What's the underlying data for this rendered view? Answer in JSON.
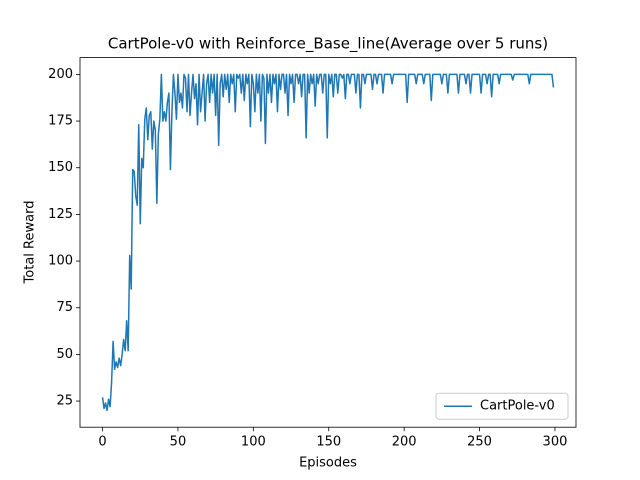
{
  "chart_data": {
    "type": "line",
    "title": "CartPole-v0 with Reinforce_Base_line(Average over 5 runs)",
    "x_label": "Episodes",
    "y_label": "Total Reward",
    "x": [
      0,
      1,
      2,
      3,
      4,
      5,
      6,
      7,
      8,
      9,
      10,
      11,
      12,
      13,
      14,
      15,
      16,
      17,
      18,
      19,
      20,
      21,
      22,
      23,
      24,
      25,
      26,
      27,
      28,
      29,
      30,
      31,
      32,
      33,
      34,
      35,
      36,
      37,
      38,
      39,
      40,
      41,
      42,
      43,
      44,
      45,
      46,
      47,
      48,
      49,
      50,
      51,
      52,
      53,
      54,
      55,
      56,
      57,
      58,
      59,
      60,
      61,
      62,
      63,
      64,
      65,
      66,
      67,
      68,
      69,
      70,
      71,
      72,
      73,
      74,
      75,
      76,
      77,
      78,
      79,
      80,
      81,
      82,
      83,
      84,
      85,
      86,
      87,
      88,
      89,
      90,
      91,
      92,
      93,
      94,
      95,
      96,
      97,
      98,
      99,
      100,
      101,
      102,
      103,
      104,
      105,
      106,
      107,
      108,
      109,
      110,
      111,
      112,
      113,
      114,
      115,
      116,
      117,
      118,
      119,
      120,
      121,
      122,
      123,
      124,
      125,
      126,
      127,
      128,
      129,
      130,
      131,
      132,
      133,
      134,
      135,
      136,
      137,
      138,
      139,
      140,
      141,
      142,
      143,
      144,
      145,
      146,
      147,
      148,
      149,
      150,
      151,
      152,
      153,
      154,
      155,
      156,
      157,
      158,
      159,
      160,
      161,
      162,
      163,
      164,
      165,
      166,
      167,
      168,
      169,
      170,
      171,
      172,
      173,
      174,
      175,
      176,
      177,
      178,
      179,
      180,
      181,
      182,
      183,
      184,
      185,
      186,
      187,
      188,
      189,
      190,
      191,
      192,
      193,
      194,
      195,
      196,
      197,
      198,
      199,
      200,
      201,
      202,
      203,
      204,
      205,
      206,
      207,
      208,
      209,
      210,
      211,
      212,
      213,
      214,
      215,
      216,
      217,
      218,
      219,
      220,
      221,
      222,
      223,
      224,
      225,
      226,
      227,
      228,
      229,
      230,
      231,
      232,
      233,
      234,
      235,
      236,
      237,
      238,
      239,
      240,
      241,
      242,
      243,
      244,
      245,
      246,
      247,
      248,
      249,
      250,
      251,
      252,
      253,
      254,
      255,
      256,
      257,
      258,
      259,
      260,
      261,
      262,
      263,
      264,
      265,
      266,
      267,
      268,
      269,
      270,
      271,
      272,
      273,
      274,
      275,
      276,
      277,
      278,
      279,
      280,
      281,
      282,
      283,
      284,
      285,
      286,
      287,
      288,
      289,
      290,
      291,
      292,
      293,
      294,
      295,
      296,
      297,
      298,
      299
    ],
    "series": [
      {
        "name": "CartPole-v0",
        "color": "#1f77b4",
        "values": [
          27,
          21,
          24,
          20,
          26,
          22,
          35,
          57,
          42,
          46,
          43,
          48,
          44,
          50,
          58,
          52,
          68,
          52,
          103,
          85,
          149,
          148,
          135,
          130,
          173,
          120,
          155,
          150,
          176,
          182,
          165,
          178,
          180,
          160,
          175,
          170,
          131,
          168,
          176,
          200,
          175,
          180,
          175,
          185,
          190,
          149,
          180,
          200,
          190,
          176,
          200,
          185,
          190,
          182,
          200,
          198,
          180,
          200,
          178,
          190,
          200,
          187,
          195,
          173,
          200,
          180,
          190,
          200,
          175,
          195,
          200,
          185,
          200,
          190,
          200,
          178,
          200,
          162,
          195,
          200,
          188,
          200,
          192,
          200,
          185,
          200,
          195,
          200,
          180,
          200,
          198,
          200,
          190,
          200,
          186,
          200,
          195,
          200,
          172,
          200,
          195,
          180,
          200,
          190,
          200,
          175,
          200,
          198,
          163,
          200,
          190,
          200,
          185,
          200,
          195,
          200,
          180,
          200,
          192,
          200,
          200,
          190,
          200,
          178,
          200,
          195,
          200,
          185,
          200,
          200,
          195,
          200,
          188,
          200,
          200,
          166,
          200,
          190,
          200,
          195,
          200,
          183,
          200,
          195,
          200,
          200,
          190,
          200,
          200,
          166,
          200,
          195,
          200,
          188,
          200,
          200,
          190,
          200,
          200,
          198,
          200,
          187,
          200,
          200,
          195,
          200,
          200,
          200,
          190,
          200,
          200,
          182,
          200,
          200,
          195,
          200,
          200,
          200,
          200,
          192,
          200,
          200,
          195,
          200,
          200,
          200,
          190,
          200,
          200,
          200,
          200,
          200,
          195,
          200,
          200,
          200,
          200,
          200,
          200,
          200,
          200,
          200,
          185,
          200,
          200,
          200,
          200,
          200,
          195,
          200,
          200,
          200,
          200,
          195,
          200,
          200,
          200,
          200,
          186,
          200,
          200,
          200,
          200,
          200,
          200,
          195,
          200,
          200,
          200,
          190,
          200,
          200,
          200,
          200,
          200,
          200,
          190,
          200,
          200,
          200,
          200,
          195,
          200,
          200,
          190,
          200,
          200,
          200,
          200,
          200,
          200,
          190,
          200,
          200,
          200,
          195,
          200,
          200,
          188,
          200,
          200,
          200,
          200,
          195,
          200,
          200,
          200,
          200,
          200,
          200,
          200,
          200,
          197,
          200,
          200,
          200,
          200,
          200,
          200,
          200,
          200,
          200,
          200,
          195,
          200,
          200,
          200,
          200,
          200,
          200,
          200,
          200,
          200,
          200,
          200,
          200,
          200,
          200,
          200,
          193
        ]
      }
    ],
    "xlim": [
      -14.95,
      313.95
    ],
    "ylim": [
      11,
      209
    ],
    "xticks": [
      0,
      50,
      100,
      150,
      200,
      250,
      300
    ],
    "yticks": [
      25,
      50,
      75,
      100,
      125,
      150,
      175,
      200
    ],
    "legend": "lower right"
  }
}
